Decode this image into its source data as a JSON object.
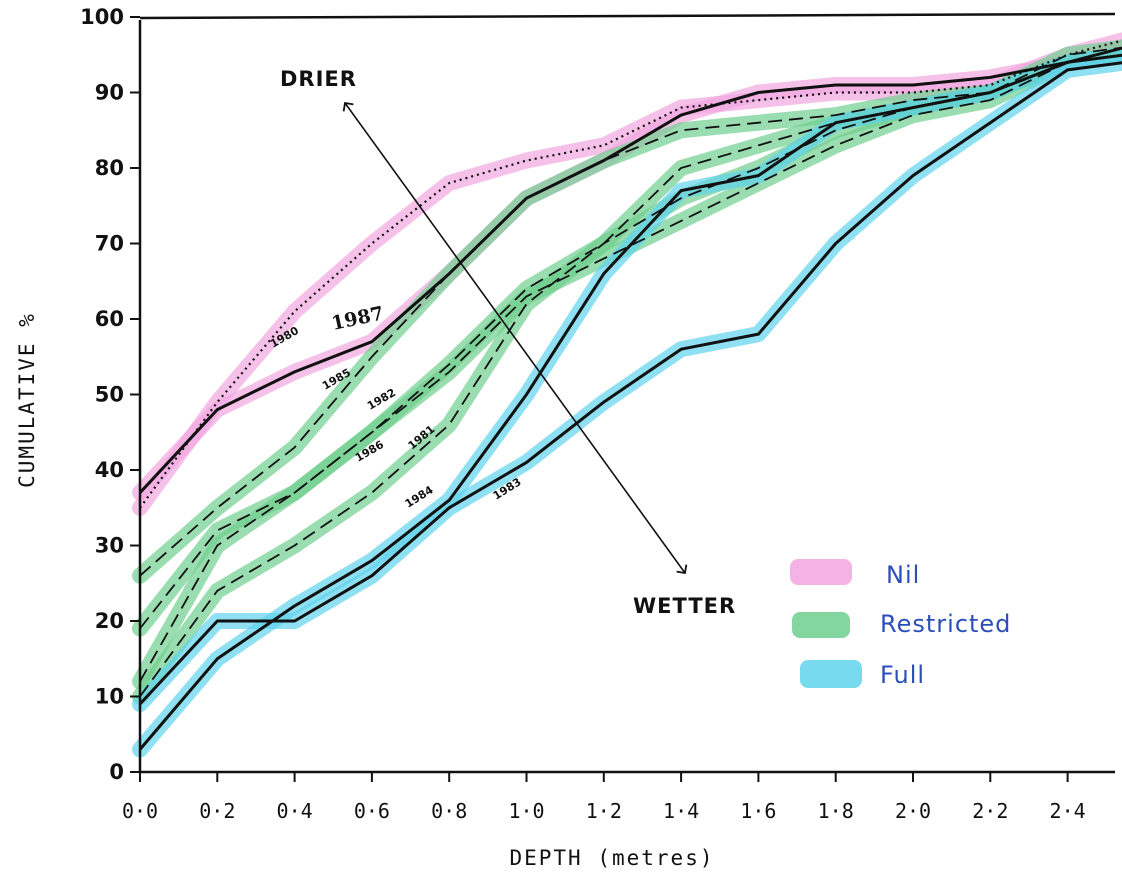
{
  "chart_data": {
    "type": "line",
    "xlabel": "DEPTH (metres)",
    "ylabel": "CUMULATIVE %",
    "xlim": [
      0,
      2.6
    ],
    "ylim": [
      0,
      100
    ],
    "x_ticks": [
      "0·0",
      "0·2",
      "0·4",
      "0·6",
      "0·8",
      "1·0",
      "1·2",
      "1·4",
      "1·6",
      "1·8",
      "2·0",
      "2·2",
      "2·4"
    ],
    "y_ticks": [
      "0",
      "10",
      "20",
      "30",
      "40",
      "50",
      "60",
      "70",
      "80",
      "90",
      "100"
    ],
    "grid": false,
    "legend_position": "right",
    "legend": [
      {
        "name": "Nil",
        "color": "#f2a6e0"
      },
      {
        "name": "Restricted",
        "color": "#6fcf8f"
      },
      {
        "name": "Full",
        "color": "#5fd3ec"
      }
    ],
    "annotations": {
      "drier": "DRIER",
      "wetter": "WETTER"
    },
    "series": [
      {
        "name": "1980",
        "irrigation": "Nil",
        "style": "dotted",
        "x": [
          0.0,
          0.2,
          0.4,
          0.6,
          0.8,
          1.0,
          1.2,
          1.4,
          1.6,
          1.8,
          2.0,
          2.2,
          2.4,
          2.55
        ],
        "y": [
          35,
          49,
          61,
          70,
          78,
          81,
          83,
          88,
          89,
          90,
          90,
          91,
          95,
          97
        ]
      },
      {
        "name": "1987",
        "irrigation": "Nil",
        "style": "solid",
        "x": [
          0.0,
          0.2,
          0.4,
          0.6,
          0.8,
          1.0,
          1.2,
          1.4,
          1.6,
          1.8,
          2.0,
          2.2,
          2.4,
          2.55
        ],
        "y": [
          37,
          48,
          53,
          57,
          66,
          76,
          81,
          87,
          90,
          91,
          91,
          92,
          94,
          96
        ]
      },
      {
        "name": "1985",
        "irrigation": "Restricted",
        "style": "dashed",
        "x": [
          0.0,
          0.2,
          0.4,
          0.6,
          0.8,
          1.0,
          1.2,
          1.4,
          1.6,
          1.8,
          2.0,
          2.2,
          2.4,
          2.55
        ],
        "y": [
          26,
          35,
          43,
          55,
          66,
          76,
          81,
          85,
          86,
          87,
          89,
          90,
          95,
          96
        ]
      },
      {
        "name": "1982",
        "irrigation": "Restricted",
        "style": "dashed",
        "x": [
          0.0,
          0.2,
          0.4,
          0.6,
          0.8,
          1.0,
          1.2,
          1.4,
          1.6,
          1.8,
          2.0,
          2.2,
          2.4,
          2.55
        ],
        "y": [
          19,
          32,
          37,
          45,
          54,
          64,
          70,
          80,
          83,
          86,
          88,
          90,
          94,
          95
        ]
      },
      {
        "name": "1986",
        "irrigation": "Restricted",
        "style": "dashed",
        "x": [
          0.0,
          0.2,
          0.4,
          0.6,
          0.8,
          1.0,
          1.2,
          1.4,
          1.6,
          1.8,
          2.0,
          2.2,
          2.4,
          2.55
        ],
        "y": [
          12,
          30,
          37,
          45,
          53,
          63,
          68,
          73,
          78,
          83,
          87,
          89,
          94,
          95
        ]
      },
      {
        "name": "1981",
        "irrigation": "Restricted",
        "style": "dashed",
        "x": [
          0.0,
          0.2,
          0.4,
          0.6,
          0.8,
          1.0,
          1.2,
          1.4,
          1.6,
          1.8,
          2.0,
          2.2,
          2.4,
          2.55
        ],
        "y": [
          10,
          24,
          30,
          37,
          46,
          62,
          70,
          76,
          80,
          85,
          88,
          90,
          94,
          95
        ]
      },
      {
        "name": "1984",
        "irrigation": "Full",
        "style": "solid",
        "x": [
          0.0,
          0.2,
          0.4,
          0.6,
          0.8,
          1.0,
          1.2,
          1.4,
          1.6,
          1.8,
          2.0,
          2.2,
          2.4,
          2.55
        ],
        "y": [
          3,
          15,
          22,
          28,
          36,
          50,
          66,
          77,
          79,
          86,
          88,
          90,
          94,
          95
        ]
      },
      {
        "name": "1983",
        "irrigation": "Full",
        "style": "solid",
        "x": [
          0.0,
          0.2,
          0.4,
          0.6,
          0.8,
          1.0,
          1.2,
          1.4,
          1.6,
          1.8,
          2.0,
          2.2,
          2.4,
          2.55
        ],
        "y": [
          9,
          20,
          20,
          26,
          35,
          41,
          49,
          56,
          58,
          70,
          79,
          86,
          93,
          94
        ]
      }
    ],
    "series_labels": [
      "1980",
      "1987",
      "1985",
      "1982",
      "1986",
      "1981",
      "1984",
      "1983"
    ]
  }
}
